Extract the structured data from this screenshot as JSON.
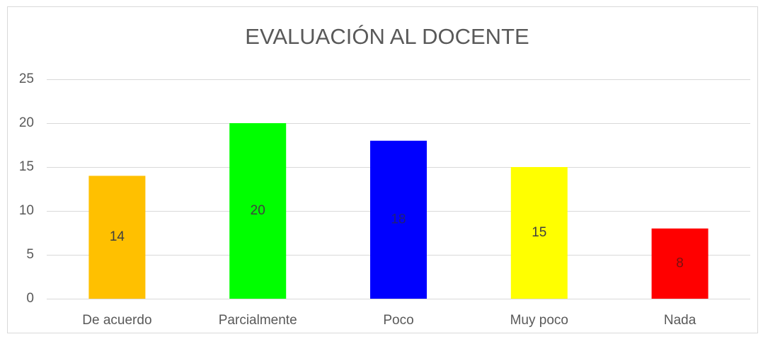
{
  "chart_data": {
    "type": "bar",
    "title": "EVALUACIÓN AL DOCENTE",
    "categories": [
      "De acuerdo",
      "Parcialmente",
      "Poco",
      "Muy poco",
      "Nada"
    ],
    "values": [
      14,
      20,
      18,
      15,
      8
    ],
    "colors": [
      "#ffc000",
      "#00ff00",
      "#0000ff",
      "#ffff00",
      "#ff0000"
    ],
    "ylim": [
      0,
      25
    ],
    "yticks": [
      0,
      5,
      10,
      15,
      20,
      25
    ],
    "grid": true,
    "data_labels": true
  }
}
